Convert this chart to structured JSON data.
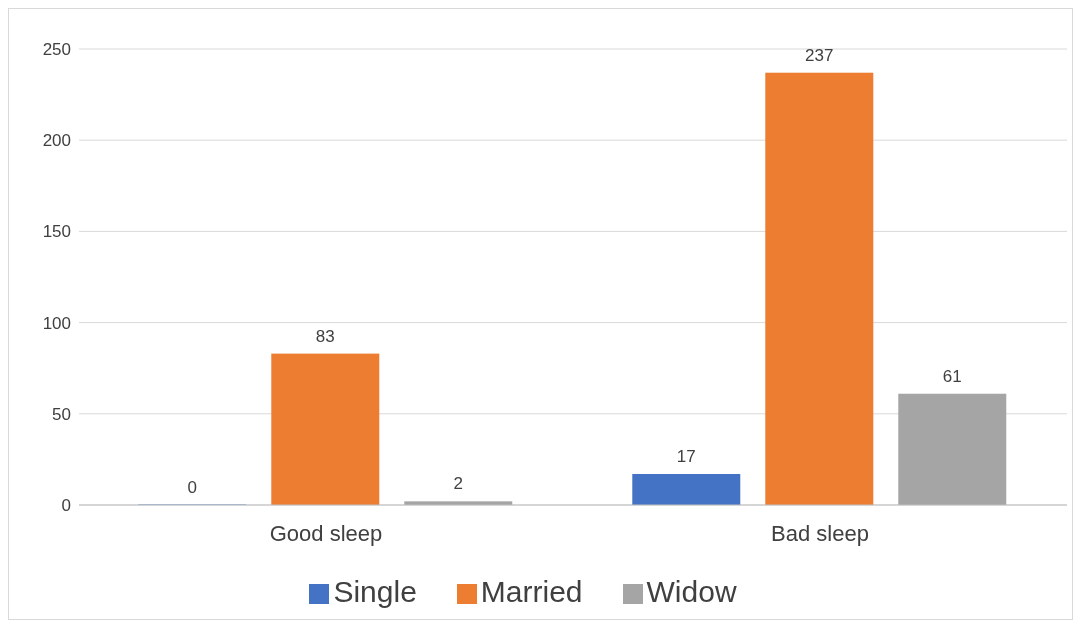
{
  "chart_data": {
    "type": "bar",
    "categories": [
      "Good sleep",
      "Bad sleep"
    ],
    "series": [
      {
        "name": "Single",
        "color": "#4472c4",
        "values": [
          0,
          17
        ]
      },
      {
        "name": "Married",
        "color": "#ed7d31",
        "values": [
          83,
          237
        ]
      },
      {
        "name": "Widow",
        "color": "#a5a5a5",
        "values": [
          2,
          61
        ]
      }
    ],
    "ylim": [
      0,
      250
    ],
    "yticks": [
      0,
      50,
      100,
      150,
      200,
      250
    ],
    "grid": "y",
    "legend": "bottom",
    "data_labels": true
  }
}
